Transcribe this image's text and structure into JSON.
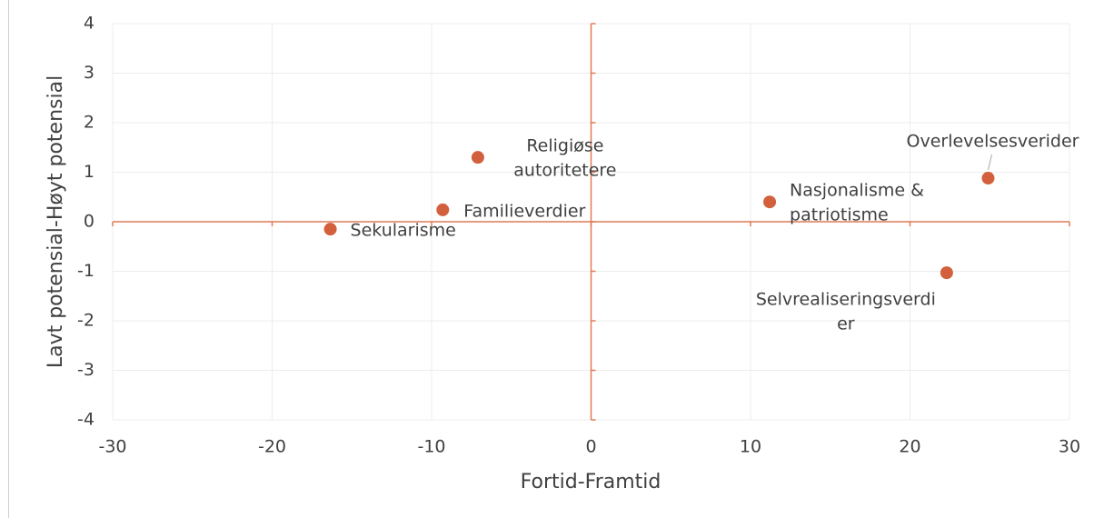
{
  "chart_data": {
    "type": "scatter",
    "x_label": "Fortid-Framtid",
    "y_label": "Lavt potensial-Høyt potensial",
    "color": "#d2603c",
    "axis_color": "#e07a55",
    "grid": true,
    "xlim": [
      -30,
      30
    ],
    "ylim": [
      -4,
      4
    ],
    "xticks": [
      -30,
      -20,
      -10,
      0,
      10,
      20,
      30
    ],
    "yticks": [
      -4,
      -3,
      -2,
      -1,
      0,
      1,
      2,
      3,
      4
    ],
    "x": [
      -16.35,
      -9.3,
      -7.1,
      11.2,
      24.9,
      22.3
    ],
    "values": [
      -0.15,
      0.24,
      1.3,
      0.4,
      0.88,
      -1.03
    ],
    "labels": [
      [
        "Sekularisme"
      ],
      [
        "Familieverdier"
      ],
      [
        "Religiøse",
        "autoritetere"
      ],
      [
        "Nasjonalisme &",
        "patriotisme"
      ],
      [
        "Overlevelsesverider"
      ],
      [
        "Selvrealiseringsverdi",
        "er"
      ]
    ]
  }
}
